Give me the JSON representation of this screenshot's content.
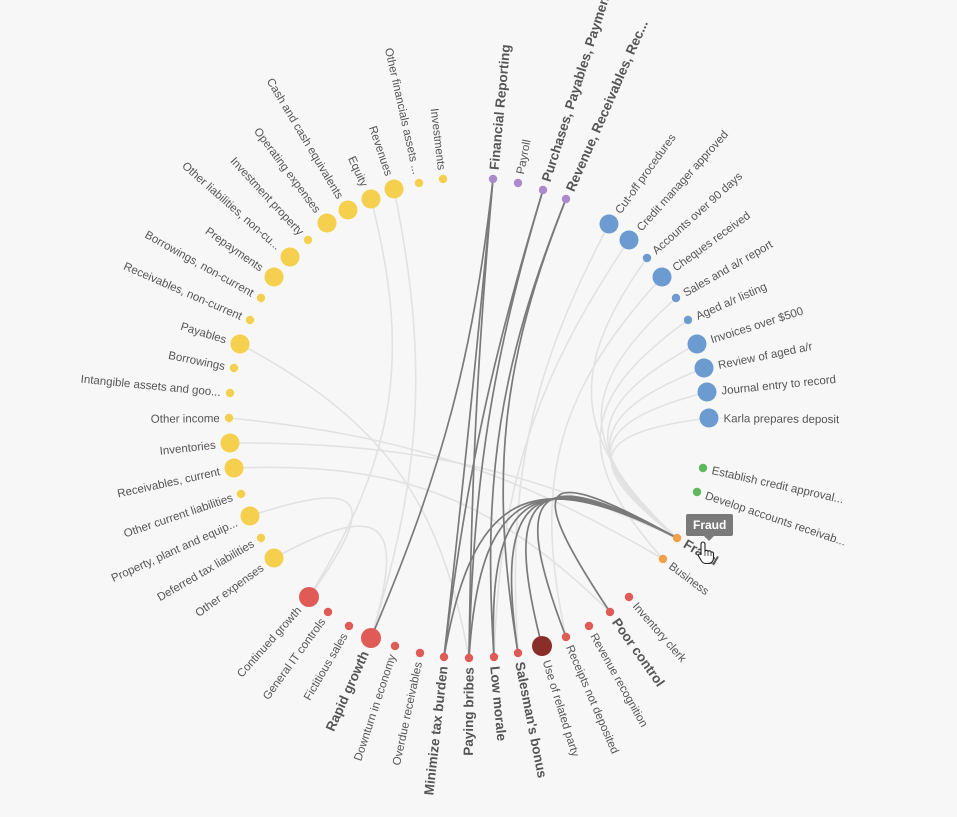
{
  "colors": {
    "yellow": "#f5d04e",
    "blue": "#6b9bd1",
    "purple": "#a98acb",
    "green": "#5cb85c",
    "orange": "#f4a04a",
    "red": "#e05a56",
    "darkred": "#8b2e2a",
    "label": "#555555",
    "link_active": "#7a7a7a",
    "link_faint": "#e2e2e2",
    "tooltip_bg": "#7a7a7a"
  },
  "tooltip": {
    "text": "Fraud"
  },
  "active_node": "Fraud",
  "nodes": [
    {
      "label": "Other expenses",
      "group": "yellow",
      "size": 3
    },
    {
      "label": "Deferred tax liabilities",
      "group": "yellow",
      "size": 1
    },
    {
      "label": "Property, plant and equip...",
      "group": "yellow",
      "size": 3
    },
    {
      "label": "Other current liabilities",
      "group": "yellow",
      "size": 1
    },
    {
      "label": "Receivables, current",
      "group": "yellow",
      "size": 3
    },
    {
      "label": "Inventories",
      "group": "yellow",
      "size": 3
    },
    {
      "label": "Other income",
      "group": "yellow",
      "size": 1
    },
    {
      "label": "Intangible assets and goo...",
      "group": "yellow",
      "size": 1
    },
    {
      "label": "Borrowings",
      "group": "yellow",
      "size": 1
    },
    {
      "label": "Payables",
      "group": "yellow",
      "size": 3
    },
    {
      "label": "Receivables, non-current",
      "group": "yellow",
      "size": 1
    },
    {
      "label": "Borrowings, non-current",
      "group": "yellow",
      "size": 1
    },
    {
      "label": "Prepayments",
      "group": "yellow",
      "size": 3
    },
    {
      "label": "Other liabilities, non-cu...",
      "group": "yellow",
      "size": 3
    },
    {
      "label": "Investment property",
      "group": "yellow",
      "size": 1
    },
    {
      "label": "Operating expenses",
      "group": "yellow",
      "size": 3
    },
    {
      "label": "Cash and cash equivalents",
      "group": "yellow",
      "size": 3
    },
    {
      "label": "Equity",
      "group": "yellow",
      "size": 3
    },
    {
      "label": "Revenues",
      "group": "yellow",
      "size": 3
    },
    {
      "label": "Other financials assets ...",
      "group": "yellow",
      "size": 1
    },
    {
      "label": "Investments",
      "group": "yellow",
      "size": 1
    },
    {
      "label": "Financial Reporting",
      "group": "purple",
      "size": 1,
      "bold": true
    },
    {
      "label": "Payroll",
      "group": "purple",
      "size": 1
    },
    {
      "label": "Purchases, Payables, Payments",
      "group": "purple",
      "size": 1,
      "bold": true
    },
    {
      "label": "Revenue, Receivables, Rec...",
      "group": "purple",
      "size": 1,
      "bold": true
    },
    {
      "label": "Cut-off procedures",
      "group": "blue",
      "size": 3
    },
    {
      "label": "Credit manager approved",
      "group": "blue",
      "size": 3
    },
    {
      "label": "Accounts over 90 days",
      "group": "blue",
      "size": 1
    },
    {
      "label": "Cheques received",
      "group": "blue",
      "size": 3
    },
    {
      "label": "Sales and a/r report",
      "group": "blue",
      "size": 1
    },
    {
      "label": "Aged a/r listing",
      "group": "blue",
      "size": 1
    },
    {
      "label": "Invoices over $500",
      "group": "blue",
      "size": 3
    },
    {
      "label": "Review of aged a/r",
      "group": "blue",
      "size": 3
    },
    {
      "label": "Journal entry to record",
      "group": "blue",
      "size": 3
    },
    {
      "label": "Karla prepares deposit",
      "group": "blue",
      "size": 3
    },
    {
      "label": "Establish credit approval...",
      "group": "green",
      "size": 1
    },
    {
      "label": "Develop accounts receivab...",
      "group": "green",
      "size": 1
    },
    {
      "label": "Fraud",
      "group": "orange",
      "size": 1,
      "bold": true
    },
    {
      "label": "Business",
      "group": "orange",
      "size": 1
    },
    {
      "label": "Inventory clerk",
      "group": "red",
      "size": 1
    },
    {
      "label": "Poor control",
      "group": "red",
      "size": 1,
      "bold": true
    },
    {
      "label": "Revenue recognition",
      "group": "red",
      "size": 1
    },
    {
      "label": "Receipts not deposited",
      "group": "red",
      "size": 1
    },
    {
      "label": "Use of related party",
      "group": "darkred",
      "size": 4
    },
    {
      "label": "Salesman's bonus",
      "group": "red",
      "size": 1,
      "bold": true
    },
    {
      "label": "Low morale",
      "group": "red",
      "size": 1,
      "bold": true
    },
    {
      "label": "Paying bribes",
      "group": "red",
      "size": 1,
      "bold": true
    },
    {
      "label": "Minimize tax burden",
      "group": "red",
      "size": 1,
      "bold": true
    },
    {
      "label": "Overdue receivables",
      "group": "red",
      "size": 1
    },
    {
      "label": "Downturn in economy",
      "group": "red",
      "size": 1
    },
    {
      "label": "Rapid growth",
      "group": "red",
      "size": 4,
      "bold": true
    },
    {
      "label": "Fictitious sales",
      "group": "red",
      "size": 1
    },
    {
      "label": "General IT controls",
      "group": "red",
      "size": 1
    },
    {
      "label": "Continued growth",
      "group": "red",
      "size": 4
    }
  ],
  "active_links": [
    [
      "Financial Reporting",
      "Rapid growth"
    ],
    [
      "Financial Reporting",
      "Minimize tax burden"
    ],
    [
      "Financial Reporting",
      "Paying bribes"
    ],
    [
      "Purchases, Payables, Payments",
      "Paying bribes"
    ],
    [
      "Purchases, Payables, Payments",
      "Minimize tax burden"
    ],
    [
      "Revenue, Receivables, Rec...",
      "Low morale"
    ],
    [
      "Revenue, Receivables, Rec...",
      "Salesman's bonus"
    ],
    [
      "Fraud",
      "Minimize tax burden"
    ],
    [
      "Fraud",
      "Paying bribes"
    ],
    [
      "Fraud",
      "Low morale"
    ],
    [
      "Fraud",
      "Salesman's bonus"
    ],
    [
      "Fraud",
      "Use of related party"
    ],
    [
      "Fraud",
      "Receipts not deposited"
    ],
    [
      "Fraud",
      "Poor control"
    ]
  ],
  "faint_links": [
    [
      "Revenues",
      "Rapid growth"
    ],
    [
      "Equity",
      "Continued growth"
    ],
    [
      "Inventories",
      "Fraud"
    ],
    [
      "Receivables, current",
      "Poor control"
    ],
    [
      "Cut-off procedures",
      "Salesman's bonus"
    ],
    [
      "Credit manager approved",
      "Low morale"
    ],
    [
      "Cheques received",
      "Receipts not deposited"
    ],
    [
      "Sales and a/r report",
      "Fraud"
    ],
    [
      "Invoices over $500",
      "Fraud"
    ],
    [
      "Review of aged a/r",
      "Fraud"
    ],
    [
      "Journal entry to record",
      "Fraud"
    ],
    [
      "Karla prepares deposit",
      "Fraud"
    ],
    [
      "Accounts over 90 days",
      "Fraud"
    ],
    [
      "Aged a/r listing",
      "Business"
    ],
    [
      "Other income",
      "Business"
    ],
    [
      "Other expenses",
      "Rapid growth"
    ],
    [
      "Property, plant and equip...",
      "Continued growth"
    ],
    [
      "Payables",
      "Paying bribes"
    ]
  ]
}
